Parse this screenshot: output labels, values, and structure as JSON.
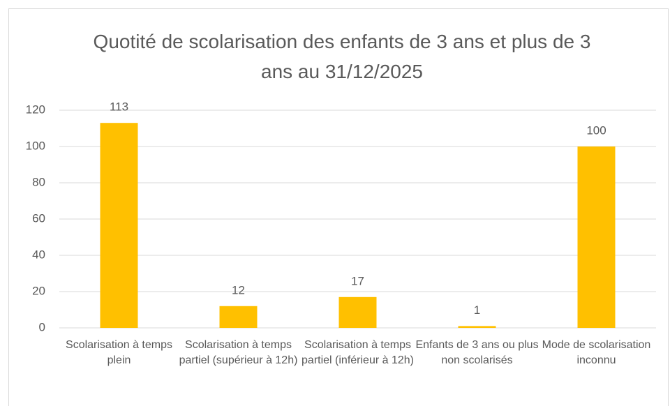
{
  "chart_data": {
    "type": "bar",
    "title": "Quotité de scolarisation des enfants de 3 ans et plus de 3 ans au 31/12/2025",
    "categories": [
      "Scolarisation à temps plein",
      "Scolarisation à temps partiel (supérieur à 12h)",
      "Scolarisation à temps partiel (inférieur à 12h)",
      "Enfants de 3 ans ou plus non scolarisés",
      "Mode de scolarisation inconnu"
    ],
    "values": [
      113,
      12,
      17,
      1,
      100
    ],
    "color": "#ffc000",
    "ylim": [
      0,
      120
    ],
    "yticks": [
      0,
      20,
      40,
      60,
      80,
      100,
      120
    ],
    "grid": true
  }
}
